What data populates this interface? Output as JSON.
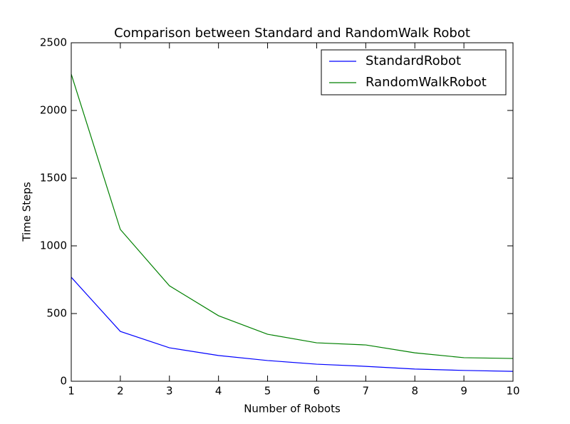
{
  "chart_data": {
    "type": "line",
    "title": "Comparison between Standard and RandomWalk Robot",
    "xlabel": "Number of Robots",
    "ylabel": "Time Steps",
    "x": [
      1,
      2,
      3,
      4,
      5,
      6,
      7,
      8,
      9,
      10
    ],
    "series": [
      {
        "name": "StandardRobot",
        "color": "#0000ff",
        "values": [
          768,
          368,
          247,
          190,
          153,
          126,
          110,
          90,
          80,
          73
        ]
      },
      {
        "name": "RandomWalkRobot",
        "color": "#008000",
        "values": [
          2268,
          1121,
          705,
          484,
          347,
          284,
          268,
          210,
          174,
          168
        ]
      }
    ],
    "xlim": [
      1,
      10
    ],
    "xticks": [
      1,
      2,
      3,
      4,
      5,
      6,
      7,
      8,
      9,
      10
    ],
    "ylim": [
      0,
      2500
    ],
    "yticks": [
      0,
      500,
      1000,
      1500,
      2000,
      2500
    ],
    "grid": false,
    "legend": "upper right"
  }
}
